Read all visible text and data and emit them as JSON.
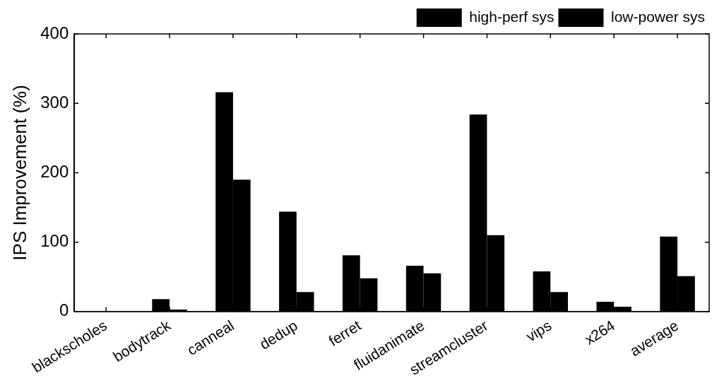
{
  "chart_data": {
    "type": "bar",
    "ylabel": "IPS Improvement (%)",
    "categories": [
      "blackscholes",
      "bodytrack",
      "canneal",
      "dedup",
      "ferret",
      "fluidanimate",
      "streamcluster",
      "vips",
      "x264",
      "average"
    ],
    "series": [
      {
        "name": "high-perf sys",
        "color": "#000000",
        "values": [
          0,
          18,
          316,
          144,
          81,
          66,
          284,
          58,
          14,
          108
        ]
      },
      {
        "name": "low-power sys",
        "color": "#000000",
        "values": [
          0,
          3,
          190,
          28,
          48,
          55,
          110,
          28,
          7,
          51
        ]
      }
    ],
    "ylim": [
      0,
      400
    ],
    "yticks": [
      0,
      100,
      200,
      300,
      400
    ],
    "grid": false,
    "legend": "top right"
  }
}
